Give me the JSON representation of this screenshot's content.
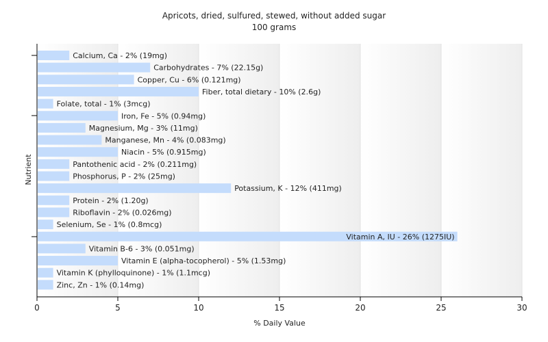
{
  "chart_data": {
    "type": "bar",
    "orientation": "horizontal",
    "title": "Apricots, dried, sulfured, stewed, without added sugar",
    "subtitle": "100 grams",
    "xlabel": "% Daily Value",
    "ylabel": "Nutrient",
    "xlim": [
      0,
      30
    ],
    "xticks": [
      0,
      5,
      10,
      15,
      20,
      25,
      30
    ],
    "grid": true,
    "bar_color": "#c4dcfc",
    "categories": [
      "Calcium, Ca",
      "Carbohydrates",
      "Copper, Cu",
      "Fiber, total dietary",
      "Folate, total",
      "Iron, Fe",
      "Magnesium, Mg",
      "Manganese, Mn",
      "Niacin",
      "Pantothenic acid",
      "Phosphorus, P",
      "Potassium, K",
      "Protein",
      "Riboflavin",
      "Selenium, Se",
      "Vitamin A, IU",
      "Vitamin B-6",
      "Vitamin E (alpha-tocopherol)",
      "Vitamin K (phylloquinone)",
      "Zinc, Zn"
    ],
    "values": [
      2,
      7,
      6,
      10,
      1,
      5,
      3,
      4,
      5,
      2,
      2,
      12,
      2,
      2,
      1,
      26,
      3,
      5,
      1,
      1
    ],
    "labels": [
      "Calcium, Ca - 2% (19mg)",
      "Carbohydrates - 7% (22.15g)",
      "Copper, Cu - 6% (0.121mg)",
      "Fiber, total dietary - 10% (2.6g)",
      "Folate, total - 1% (3mcg)",
      "Iron, Fe - 5% (0.94mg)",
      "Magnesium, Mg - 3% (11mg)",
      "Manganese, Mn - 4% (0.083mg)",
      "Niacin - 5% (0.915mg)",
      "Pantothenic acid - 2% (0.211mg)",
      "Phosphorus, P - 2% (25mg)",
      "Potassium, K - 12% (411mg)",
      "Protein - 2% (1.20g)",
      "Riboflavin - 2% (0.026mg)",
      "Selenium, Se - 1% (0.8mcg)",
      "Vitamin A, IU - 26% (1275IU)",
      "Vitamin B-6 - 3% (0.051mg)",
      "Vitamin E (alpha-tocopherol) - 5% (1.53mg)",
      "Vitamin K (phylloquinone) - 1% (1.1mcg)",
      "Zinc, Zn - 1% (0.14mg)"
    ]
  }
}
